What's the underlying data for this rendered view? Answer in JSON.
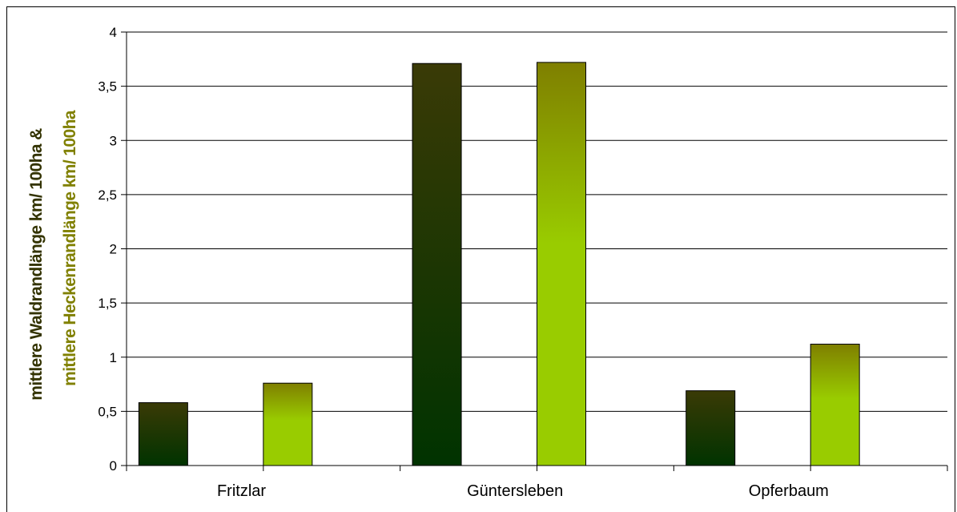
{
  "chart_data": {
    "type": "bar",
    "categories": [
      "Fritzlar",
      "Güntersleben",
      "Opferbaum"
    ],
    "series": [
      {
        "name": "mittlere Waldrandlänge km/ 100ha",
        "values": [
          0.58,
          3.71,
          0.69
        ],
        "color_top": "#3a3a06",
        "color_bottom": "#003300"
      },
      {
        "name": "mittlere Heckenrandlänge km/ 100ha",
        "values": [
          0.76,
          3.72,
          1.12
        ],
        "color_top": "#7f7f00",
        "color_bottom": "#99cc00"
      }
    ],
    "ylabel_line1": "mittlere Waldrandlänge km/ 100ha &",
    "ylabel_line2": "mittlere Heckenrandlänge km/ 100ha",
    "ylabel_line1_color": "#333300",
    "ylabel_line2_color": "#808000",
    "ylim": [
      0,
      4
    ],
    "yticks": [
      "0",
      "0,5",
      "1",
      "1,5",
      "2",
      "2,5",
      "3",
      "3,5",
      "4"
    ],
    "grid": true,
    "legend": "none"
  }
}
